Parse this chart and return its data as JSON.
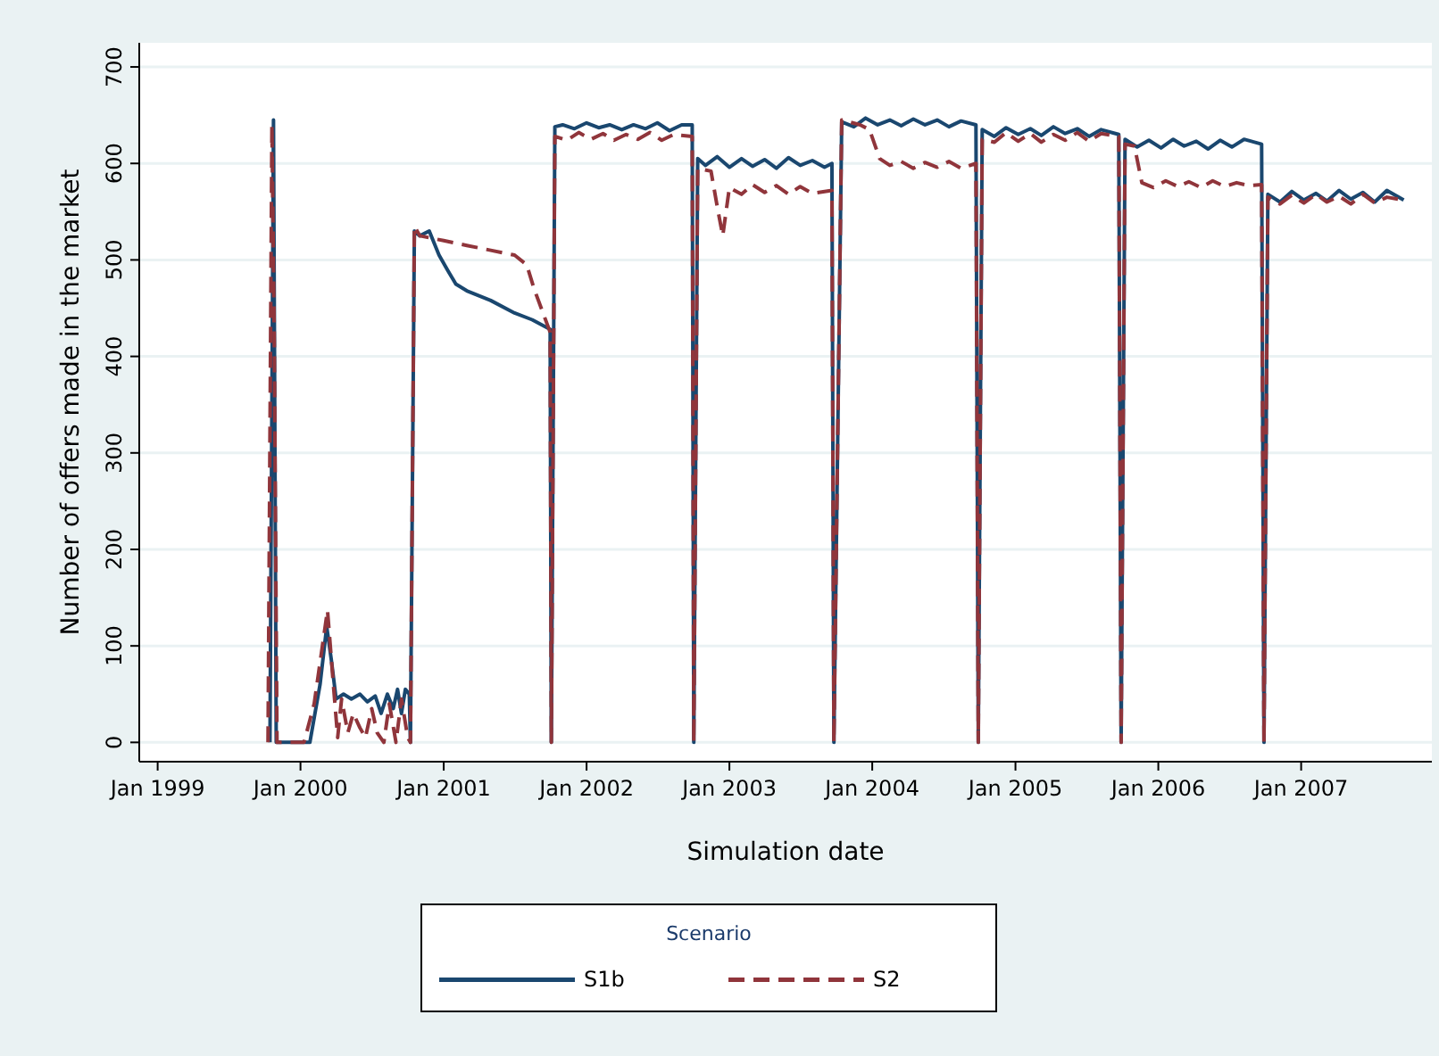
{
  "chart_data": {
    "type": "line",
    "xlabel": "Simulation date",
    "ylabel": "Number of offers made in the market",
    "legend_title": "Scenario",
    "legend": "bottom",
    "grid": "y",
    "marker": "none",
    "xlim": [
      "1998-11-15",
      "2007-12-01"
    ],
    "xticks": [
      {
        "value": "1999-01-01",
        "label": "Jan 1999"
      },
      {
        "value": "2000-01-01",
        "label": "Jan 2000"
      },
      {
        "value": "2001-01-01",
        "label": "Jan 2001"
      },
      {
        "value": "2002-01-01",
        "label": "Jan 2002"
      },
      {
        "value": "2003-01-01",
        "label": "Jan 2003"
      },
      {
        "value": "2004-01-01",
        "label": "Jan 2004"
      },
      {
        "value": "2005-01-01",
        "label": "Jan 2005"
      },
      {
        "value": "2006-01-01",
        "label": "Jan 2006"
      },
      {
        "value": "2007-01-01",
        "label": "Jan 2007"
      }
    ],
    "ylim": [
      -20,
      725
    ],
    "yticks": [
      0,
      100,
      200,
      300,
      400,
      500,
      600,
      700
    ],
    "series": [
      {
        "name": "S1b",
        "color": "#1a476f",
        "line_style": "solid",
        "x": [
          "1999-10-15",
          "1999-10-24",
          "1999-10-31",
          "2000-01-25",
          "2000-02-20",
          "2000-03-08",
          "2000-03-20",
          "2000-04-01",
          "2000-04-20",
          "2000-05-10",
          "2000-06-01",
          "2000-06-20",
          "2000-07-10",
          "2000-07-25",
          "2000-08-10",
          "2000-08-25",
          "2000-09-05",
          "2000-09-15",
          "2000-09-25",
          "2000-10-05",
          "2000-10-08",
          "2000-10-18",
          "2000-11-01",
          "2000-11-25",
          "2000-12-20",
          "2001-01-10",
          "2001-02-01",
          "2001-03-01",
          "2001-05-01",
          "2001-07-01",
          "2001-08-15",
          "2001-09-30",
          "2001-10-03",
          "2001-10-12",
          "2001-11-01",
          "2001-12-01",
          "2002-01-01",
          "2002-02-01",
          "2002-03-01",
          "2002-04-01",
          "2002-05-01",
          "2002-06-01",
          "2002-07-01",
          "2002-08-01",
          "2002-09-01",
          "2002-09-28",
          "2002-10-02",
          "2002-10-12",
          "2002-11-01",
          "2002-12-01",
          "2003-01-01",
          "2003-02-01",
          "2003-03-01",
          "2003-04-01",
          "2003-05-01",
          "2003-06-01",
          "2003-07-01",
          "2003-08-01",
          "2003-09-01",
          "2003-09-20",
          "2003-09-25",
          "2003-10-15",
          "2003-11-15",
          "2003-12-15",
          "2004-01-15",
          "2004-02-15",
          "2004-03-15",
          "2004-04-15",
          "2004-05-15",
          "2004-06-15",
          "2004-07-15",
          "2004-08-15",
          "2004-09-22",
          "2004-09-28",
          "2004-10-08",
          "2004-11-08",
          "2004-12-08",
          "2005-01-08",
          "2005-02-08",
          "2005-03-08",
          "2005-04-08",
          "2005-05-08",
          "2005-06-08",
          "2005-07-08",
          "2005-08-08",
          "2005-09-22",
          "2005-09-28",
          "2005-10-08",
          "2005-11-08",
          "2005-12-08",
          "2006-01-08",
          "2006-02-08",
          "2006-03-08",
          "2006-04-08",
          "2006-05-08",
          "2006-06-08",
          "2006-07-08",
          "2006-08-08",
          "2006-09-22",
          "2006-09-28",
          "2006-10-08",
          "2006-11-08",
          "2006-12-08",
          "2007-01-08",
          "2007-02-08",
          "2007-03-08",
          "2007-04-08",
          "2007-05-08",
          "2007-06-08",
          "2007-07-08",
          "2007-08-08",
          "2007-09-20"
        ],
        "values": [
          0,
          645,
          0,
          0,
          60,
          120,
          85,
          45,
          50,
          45,
          50,
          42,
          48,
          30,
          50,
          35,
          55,
          30,
          55,
          50,
          0,
          530,
          525,
          530,
          505,
          490,
          475,
          468,
          458,
          445,
          438,
          428,
          0,
          638,
          640,
          636,
          642,
          637,
          640,
          635,
          640,
          636,
          642,
          634,
          640,
          640,
          0,
          605,
          598,
          607,
          596,
          605,
          597,
          604,
          595,
          606,
          598,
          603,
          596,
          600,
          0,
          643,
          638,
          647,
          640,
          645,
          639,
          646,
          640,
          645,
          638,
          644,
          640,
          0,
          635,
          628,
          637,
          630,
          636,
          629,
          638,
          631,
          636,
          628,
          635,
          630,
          0,
          625,
          617,
          624,
          616,
          625,
          618,
          623,
          615,
          624,
          617,
          625,
          620,
          0,
          568,
          560,
          571,
          562,
          569,
          561,
          572,
          563,
          570,
          560,
          572,
          562
        ]
      },
      {
        "name": "S2",
        "color": "#90353b",
        "line_style": "dashed",
        "x": [
          "1999-10-10",
          "1999-10-20",
          "1999-10-26",
          "1999-11-02",
          "2000-01-10",
          "2000-02-05",
          "2000-03-10",
          "2000-03-25",
          "2000-04-05",
          "2000-04-15",
          "2000-05-01",
          "2000-05-15",
          "2000-06-01",
          "2000-06-15",
          "2000-07-01",
          "2000-07-15",
          "2000-08-01",
          "2000-08-15",
          "2000-09-01",
          "2000-09-15",
          "2000-10-01",
          "2000-10-08",
          "2000-10-18",
          "2000-11-01",
          "2001-01-01",
          "2001-03-01",
          "2001-05-01",
          "2001-07-01",
          "2001-08-01",
          "2001-08-20",
          "2001-09-30",
          "2001-10-03",
          "2001-10-12",
          "2001-11-12",
          "2001-12-12",
          "2002-01-12",
          "2002-02-12",
          "2002-03-12",
          "2002-04-12",
          "2002-05-12",
          "2002-06-12",
          "2002-07-12",
          "2002-08-12",
          "2002-09-28",
          "2002-10-02",
          "2002-10-12",
          "2002-11-15",
          "2002-12-01",
          "2002-12-15",
          "2003-01-01",
          "2003-02-01",
          "2003-03-01",
          "2003-04-01",
          "2003-05-01",
          "2003-06-01",
          "2003-07-01",
          "2003-08-01",
          "2003-09-20",
          "2003-09-25",
          "2003-10-15",
          "2003-12-01",
          "2003-12-25",
          "2004-01-20",
          "2004-02-15",
          "2004-03-15",
          "2004-04-15",
          "2004-05-15",
          "2004-06-15",
          "2004-07-15",
          "2004-08-15",
          "2004-09-22",
          "2004-09-28",
          "2004-10-08",
          "2004-11-08",
          "2004-12-08",
          "2005-01-08",
          "2005-02-08",
          "2005-03-08",
          "2005-04-08",
          "2005-05-08",
          "2005-06-08",
          "2005-07-08",
          "2005-08-08",
          "2005-09-22",
          "2005-09-28",
          "2005-10-08",
          "2005-11-01",
          "2005-11-20",
          "2005-12-20",
          "2006-01-20",
          "2006-02-20",
          "2006-03-20",
          "2006-04-20",
          "2006-05-20",
          "2006-06-20",
          "2006-07-20",
          "2006-08-20",
          "2006-09-22",
          "2006-09-28",
          "2006-10-08",
          "2006-11-08",
          "2006-12-08",
          "2007-01-08",
          "2007-02-08",
          "2007-03-08",
          "2007-04-08",
          "2007-05-08",
          "2007-06-08",
          "2007-07-08",
          "2007-08-08",
          "2007-09-20"
        ],
        "values": [
          0,
          640,
          420,
          0,
          0,
          40,
          137,
          60,
          5,
          45,
          10,
          30,
          15,
          5,
          35,
          10,
          0,
          40,
          0,
          45,
          5,
          0,
          535,
          525,
          520,
          515,
          510,
          505,
          495,
          470,
          425,
          0,
          628,
          624,
          632,
          625,
          631,
          624,
          630,
          625,
          632,
          624,
          630,
          628,
          0,
          595,
          592,
          555,
          525,
          575,
          568,
          578,
          570,
          577,
          568,
          576,
          569,
          572,
          0,
          645,
          640,
          635,
          605,
          598,
          602,
          595,
          601,
          596,
          602,
          595,
          600,
          0,
          625,
          622,
          632,
          623,
          631,
          622,
          630,
          624,
          632,
          623,
          631,
          628,
          0,
          620,
          618,
          580,
          575,
          582,
          576,
          581,
          575,
          582,
          576,
          580,
          577,
          578,
          0,
          565,
          558,
          567,
          559,
          568,
          560,
          566,
          558,
          568,
          559,
          565,
          562
        ]
      }
    ]
  }
}
